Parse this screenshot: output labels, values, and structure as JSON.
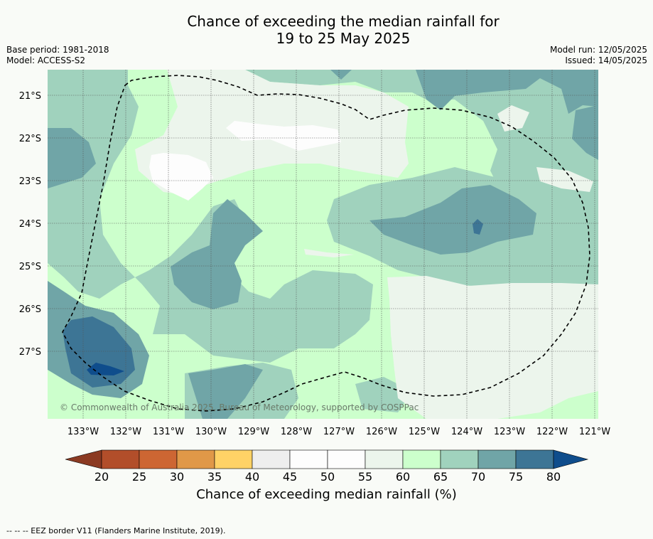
{
  "title": {
    "line1": "Chance of exceeding the median rainfall for",
    "line2": "19 to 25 May 2025"
  },
  "meta_left": {
    "base_period": "Base period: 1981-2018",
    "model": "Model: ACCESS-S2"
  },
  "meta_right": {
    "model_run": "Model run: 12/05/2025",
    "issued": "Issued: 14/05/2025"
  },
  "map": {
    "lat_labels": [
      "21°S",
      "22°S",
      "23°S",
      "24°S",
      "25°S",
      "26°S",
      "27°S"
    ],
    "lon_labels": [
      "133°W",
      "132°W",
      "131°W",
      "130°W",
      "129°W",
      "128°W",
      "127°W",
      "126°W",
      "125°W",
      "124°W",
      "123°W",
      "122°W",
      "121°W"
    ],
    "copyright": "© Commonwealth of Australia 2025, Bureau of Meteorology, supported by COSPPac",
    "eez_line": "dashed",
    "colors": {
      "c60_65": "#ccffcc",
      "c55_60": "#ecf5ec",
      "c50_55": "#fdfdfd",
      "c65_70": "#a0d2bd",
      "c70_75": "#70a5a7",
      "c75_80": "#3d7595",
      "c80_plus": "#0f4d8c"
    }
  },
  "colorbar": {
    "ticks": [
      "20",
      "25",
      "30",
      "35",
      "40",
      "45",
      "50",
      "55",
      "60",
      "65",
      "70",
      "75",
      "80"
    ],
    "colors": [
      "#8b3a22",
      "#b24e2a",
      "#cd6633",
      "#e09848",
      "#ffd266",
      "#eeeeee",
      "#fdfdfd",
      "#fdfdfd",
      "#ecf5ec",
      "#ccffcc",
      "#a0d2bd",
      "#70a5a7",
      "#3d7595",
      "#0f4d8c"
    ],
    "label": "Chance of exceeding median rainfall (%)"
  },
  "footer": "-- -- -- EEZ border V11 (Flanders Marine Institute, 2019)."
}
